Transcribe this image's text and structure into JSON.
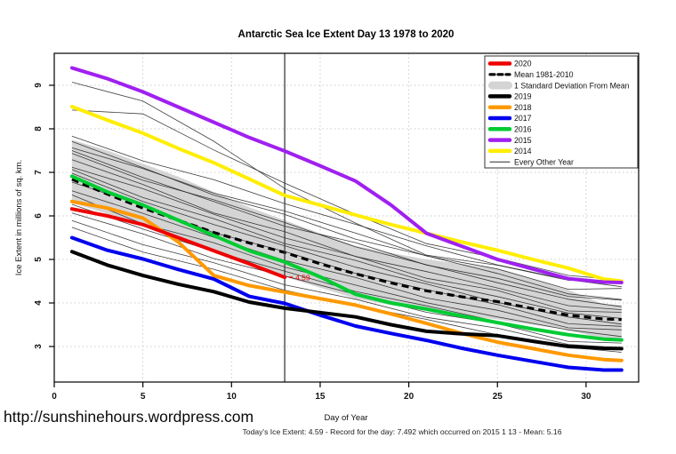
{
  "page": {
    "title": "Antarctic Sea Ice Extent Day 13 1978 to 2020",
    "watermark": "http://sunshinehours.wordpress.com",
    "footnote": "Today's Ice Extent: 4.59  - Record for the day: 7.492 which occurred on 2015 1 13  - Mean: 5.16"
  },
  "chart_data": {
    "type": "line",
    "title": "Antarctic Sea Ice Extent Day 13 1978 to 2020",
    "xlabel": "Day of Year",
    "ylabel": "Ice Extent in millions of sq. km.",
    "xlim": [
      0,
      32.5
    ],
    "ylim": [
      2.2,
      9.7
    ],
    "xticks": [
      0,
      5,
      10,
      15,
      20,
      25,
      30
    ],
    "yticks": [
      3,
      4,
      5,
      6,
      7,
      8,
      9
    ],
    "grid": "dotted",
    "vline_day": 13,
    "annotation": {
      "text": "4.59",
      "day": 13.3,
      "value": 4.59,
      "color": "#EE0000"
    },
    "x": [
      1,
      3,
      5,
      7,
      9,
      11,
      13,
      15,
      17,
      19,
      21,
      23,
      25,
      27,
      29,
      31,
      32
    ],
    "series": [
      {
        "name": "2014",
        "color": "#FFEE00",
        "values": [
          8.51,
          8.2,
          7.9,
          7.55,
          7.22,
          6.85,
          6.47,
          6.25,
          6.02,
          5.8,
          5.6,
          5.4,
          5.21,
          5.0,
          4.8,
          4.55,
          4.5
        ]
      },
      {
        "name": "2015",
        "color": "#A020F0",
        "values": [
          9.4,
          9.15,
          8.85,
          8.5,
          8.15,
          7.8,
          7.49,
          7.15,
          6.8,
          6.25,
          5.6,
          5.3,
          5.0,
          4.78,
          4.56,
          4.48,
          4.47
        ]
      },
      {
        "name": "2016",
        "color": "#00CC33",
        "values": [
          6.91,
          6.55,
          6.25,
          5.9,
          5.55,
          5.2,
          4.94,
          4.6,
          4.2,
          4.0,
          3.86,
          3.7,
          3.55,
          3.4,
          3.27,
          3.17,
          3.15
        ]
      },
      {
        "name": "2017",
        "color": "#0000EE",
        "values": [
          5.5,
          5.21,
          5.01,
          4.77,
          4.55,
          4.15,
          3.99,
          3.72,
          3.47,
          3.3,
          3.14,
          2.96,
          2.8,
          2.66,
          2.52,
          2.46,
          2.46
        ]
      },
      {
        "name": "2018",
        "color": "#FF9900",
        "values": [
          6.33,
          6.18,
          5.95,
          5.4,
          4.63,
          4.4,
          4.25,
          4.1,
          3.95,
          3.75,
          3.53,
          3.3,
          3.1,
          2.95,
          2.8,
          2.7,
          2.68
        ]
      },
      {
        "name": "2019",
        "color": "#000000",
        "values": [
          5.18,
          4.87,
          4.63,
          4.43,
          4.26,
          4.02,
          3.88,
          3.78,
          3.68,
          3.5,
          3.35,
          3.29,
          3.25,
          3.12,
          3.0,
          2.96,
          2.95
        ]
      },
      {
        "name": "2020",
        "color": "#EE0000",
        "values": [
          6.16,
          6.0,
          5.8,
          5.5,
          5.2,
          4.9,
          4.59
        ]
      }
    ],
    "mean_1981_2010": {
      "label": "Mean 1981-2010",
      "color": "#000000",
      "style": "dashed",
      "values": [
        6.84,
        6.5,
        6.18,
        5.9,
        5.62,
        5.38,
        5.16,
        4.9,
        4.67,
        4.46,
        4.28,
        4.14,
        4.03,
        3.87,
        3.72,
        3.63,
        3.62
      ]
    },
    "band": {
      "label": "1 Standard Deviation From Mean",
      "color": "#D4D4D4",
      "x": [
        1,
        3,
        5,
        7,
        9,
        11,
        13,
        15,
        17,
        19,
        21,
        23,
        25,
        27,
        29,
        31,
        32
      ],
      "top": [
        7.75,
        7.5,
        7.2,
        6.9,
        6.55,
        6.2,
        5.9,
        5.6,
        5.31,
        5.15,
        5.0,
        4.9,
        4.78,
        4.55,
        4.3,
        3.97,
        3.95
      ],
      "bottom": [
        6.3,
        6.05,
        5.8,
        5.5,
        5.2,
        4.9,
        4.6,
        4.35,
        4.1,
        3.95,
        3.82,
        3.72,
        3.62,
        3.5,
        3.38,
        3.17,
        3.15
      ]
    },
    "background_years": {
      "label": "Every Other Year",
      "color": "#2a2a2a",
      "approximate": true,
      "x": [
        1,
        5,
        9,
        13,
        17,
        21,
        25,
        29,
        32
      ],
      "lines": [
        [
          9.1,
          8.6,
          7.75,
          6.6,
          5.85,
          5.1,
          4.85,
          4.55,
          4.5
        ],
        [
          8.45,
          8.34,
          7.5,
          6.78,
          6.0,
          5.4,
          5.0,
          4.65,
          4.5
        ],
        [
          7.8,
          7.3,
          6.8,
          6.3,
          5.8,
          5.3,
          4.9,
          4.5,
          4.4
        ],
        [
          7.7,
          7.1,
          6.5,
          6.0,
          5.5,
          5.05,
          4.7,
          4.2,
          4.1
        ],
        [
          7.6,
          7.05,
          6.55,
          6.1,
          5.6,
          5.1,
          4.75,
          4.35,
          4.3
        ],
        [
          7.5,
          6.9,
          6.3,
          5.8,
          5.35,
          4.9,
          4.55,
          4.15,
          4.05
        ],
        [
          7.4,
          6.85,
          6.35,
          5.85,
          5.3,
          4.85,
          4.5,
          4.05,
          3.95
        ],
        [
          7.3,
          6.7,
          6.1,
          5.6,
          5.1,
          4.7,
          4.35,
          3.95,
          3.85
        ],
        [
          7.15,
          6.6,
          6.05,
          5.5,
          5.05,
          4.6,
          4.25,
          3.85,
          3.75
        ],
        [
          7.05,
          6.45,
          5.9,
          5.4,
          4.95,
          4.5,
          4.15,
          3.75,
          3.65
        ],
        [
          6.95,
          6.35,
          5.8,
          5.3,
          4.85,
          4.4,
          4.05,
          3.65,
          3.55
        ],
        [
          6.8,
          6.2,
          5.65,
          5.15,
          4.7,
          4.3,
          3.95,
          3.55,
          3.45
        ],
        [
          6.6,
          6.05,
          5.5,
          5.0,
          4.55,
          4.15,
          3.8,
          3.45,
          3.35
        ],
        [
          6.45,
          5.85,
          5.35,
          4.85,
          4.4,
          4.0,
          3.7,
          3.35,
          3.25
        ],
        [
          6.25,
          5.7,
          5.2,
          4.7,
          4.3,
          3.9,
          3.6,
          3.25,
          3.15
        ],
        [
          6.1,
          5.55,
          5.05,
          4.6,
          4.2,
          3.8,
          3.5,
          3.15,
          3.05
        ],
        [
          5.9,
          5.35,
          4.9,
          4.45,
          4.05,
          3.7,
          3.4,
          3.05,
          2.95
        ],
        [
          5.7,
          5.2,
          4.75,
          4.3,
          3.95,
          3.6,
          3.3,
          2.95,
          2.9
        ]
      ]
    },
    "legend": {
      "position": "top-right",
      "items": [
        {
          "label": "2020",
          "color": "#EE0000",
          "swatch": "thick"
        },
        {
          "label": "Mean 1981-2010",
          "color": "#000000",
          "swatch": "dashed"
        },
        {
          "label": "1 Standard Deviation From Mean",
          "color": "#D4D4D4",
          "swatch": "band"
        },
        {
          "label": "2019",
          "color": "#000000",
          "swatch": "thick"
        },
        {
          "label": "2018",
          "color": "#FF9900",
          "swatch": "thick"
        },
        {
          "label": "2017",
          "color": "#0000EE",
          "swatch": "thick"
        },
        {
          "label": "2016",
          "color": "#00CC33",
          "swatch": "thick"
        },
        {
          "label": "2015",
          "color": "#A020F0",
          "swatch": "thick"
        },
        {
          "label": "2014",
          "color": "#FFEE00",
          "swatch": "thick"
        },
        {
          "label": "Every Other Year",
          "color": "#2a2a2a",
          "swatch": "thin"
        }
      ]
    }
  }
}
